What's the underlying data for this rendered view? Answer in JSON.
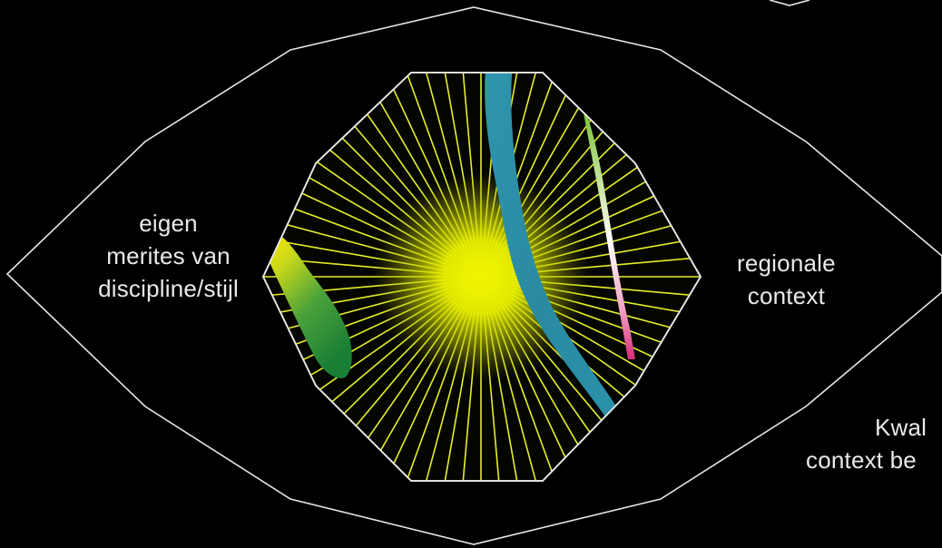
{
  "colors": {
    "background": "#000000",
    "outline": "#e6e6e6",
    "octagon_fill": "#0a0a00",
    "rays": "#e3ef2a",
    "core_glow": "#eef200",
    "teal_band": "#2b8fa6",
    "green_blob_light": "#e8e200",
    "green_blob_dark": "#1e8a3a",
    "right_streak_top": "#7ec63a",
    "right_streak_mid": "#ffffff",
    "right_streak_bottom": "#e0307e",
    "label_text": "#e9e9e9"
  },
  "diagram": {
    "ray_count": 72,
    "labels": {
      "left": {
        "line1": "eigen",
        "line2": "merites van",
        "line3": "discipline/stijl"
      },
      "right": {
        "line1": "regionale",
        "line2": "context"
      },
      "corner": {
        "line1": "Kwal",
        "line2": "context be"
      }
    }
  }
}
